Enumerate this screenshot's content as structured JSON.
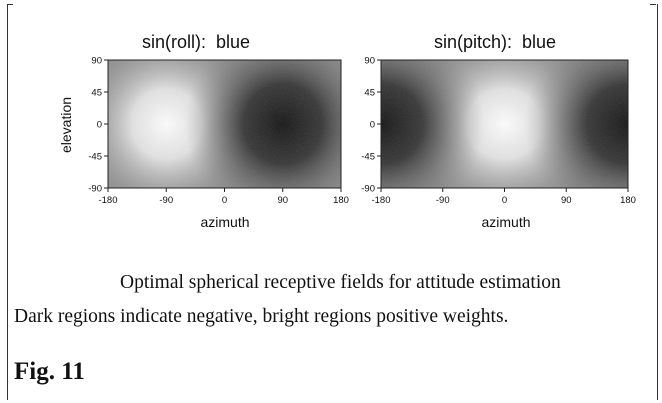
{
  "caption": {
    "line1": "Optimal spherical receptive fields for attitude estimation",
    "line2": "Dark regions indicate negative, bright regions positive weights."
  },
  "figure_label": "Fig. 11",
  "chart_data": [
    {
      "type": "heatmap",
      "title": "sin(roll):  blue",
      "xlabel": "azimuth",
      "ylabel": "elevation",
      "xlim": [
        -180,
        180
      ],
      "ylim": [
        -90,
        90
      ],
      "x_ticks": [
        -180,
        -90,
        0,
        90,
        180
      ],
      "y_ticks": [
        90,
        45,
        0,
        -45,
        -90
      ],
      "x_tick_labels": [
        "-180",
        "-90",
        "0",
        "90",
        "180"
      ],
      "y_tick_labels": [
        "90",
        "45",
        "0",
        "-45",
        "-90"
      ],
      "colormap": "grayscale (dark = negative, bright = positive)",
      "extrema": [
        {
          "kind": "bright",
          "azimuth": -90,
          "elevation": 0
        },
        {
          "kind": "dark",
          "azimuth": 90,
          "elevation": 0
        }
      ]
    },
    {
      "type": "heatmap",
      "title": "sin(pitch):  blue",
      "xlabel": "azimuth",
      "ylabel": "",
      "xlim": [
        -180,
        180
      ],
      "ylim": [
        -90,
        90
      ],
      "x_ticks": [
        -180,
        -90,
        0,
        90,
        180
      ],
      "y_ticks": [
        90,
        45,
        0,
        -45,
        -90
      ],
      "x_tick_labels": [
        "-180",
        "-90",
        "0",
        "90",
        "180"
      ],
      "y_tick_labels": [
        "90",
        "45",
        "0",
        "-45",
        "-90"
      ],
      "colormap": "grayscale (dark = negative, bright = positive)",
      "extrema": [
        {
          "kind": "bright",
          "azimuth": 0,
          "elevation": 0
        },
        {
          "kind": "dark",
          "azimuth": 180,
          "elevation": 0
        },
        {
          "kind": "dark",
          "azimuth": -180,
          "elevation": 0
        }
      ]
    }
  ]
}
